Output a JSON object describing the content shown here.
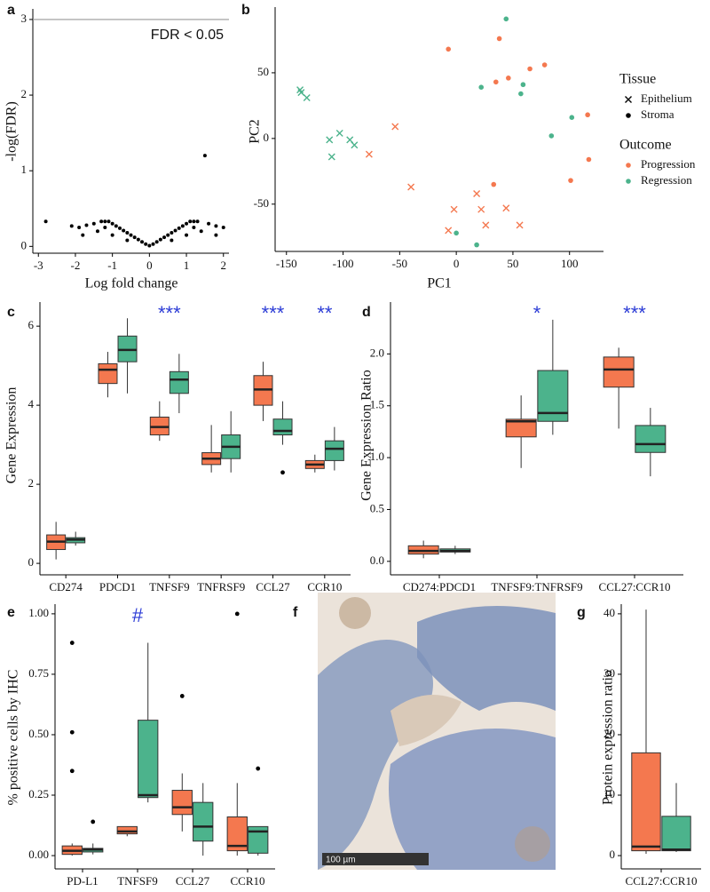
{
  "chart_data": [
    {
      "type": "scatter",
      "panel": "a",
      "x_label": "Log fold change",
      "y_label": "-log(FDR)",
      "color": "#000000",
      "x": [
        -2.8,
        -2.1,
        -1.9,
        -1.7,
        -1.5,
        -1.3,
        -1.2,
        -1.1,
        -1.0,
        -0.9,
        -0.8,
        -0.7,
        -0.6,
        -0.5,
        -0.4,
        -0.3,
        -0.2,
        -0.1,
        0,
        0.1,
        0.2,
        0.3,
        0.4,
        0.5,
        0.6,
        0.7,
        0.8,
        0.9,
        1.0,
        1.1,
        1.2,
        1.3,
        1.5,
        1.6,
        1.8,
        2.0,
        -1.0,
        -0.6,
        0.6,
        1.0,
        -1.4,
        1.4,
        -1.8,
        1.8,
        -1.2,
        1.2
      ],
      "y": [
        0.33,
        0.27,
        0.25,
        0.28,
        0.3,
        0.33,
        0.33,
        0.33,
        0.3,
        0.27,
        0.24,
        0.21,
        0.18,
        0.15,
        0.12,
        0.09,
        0.06,
        0.03,
        0.01,
        0.03,
        0.06,
        0.09,
        0.12,
        0.15,
        0.18,
        0.21,
        0.24,
        0.27,
        0.3,
        0.33,
        0.33,
        0.33,
        1.2,
        0.3,
        0.27,
        0.25,
        0.15,
        0.08,
        0.08,
        0.15,
        0.2,
        0.2,
        0.15,
        0.15,
        0.25,
        0.25
      ],
      "xlim": [
        -3.15,
        2.15
      ],
      "ylim": [
        -0.09,
        3.14
      ],
      "xticks": [
        -3,
        -2,
        -1,
        0,
        1,
        2
      ],
      "yticks": [
        0,
        1,
        2,
        3
      ],
      "threshold": {
        "value": 3,
        "label": "FDR < 0.05"
      }
    },
    {
      "type": "scatter",
      "panel": "b",
      "x_label": "PC1",
      "y_label": "PC2",
      "xlim": [
        -160,
        130
      ],
      "ylim": [
        -86,
        100
      ],
      "xticks": [
        -150,
        -100,
        -50,
        0,
        50,
        100
      ],
      "yticks": [
        -50,
        0,
        50
      ],
      "series": [
        {
          "marker": "x",
          "color": "#4cb38c",
          "x": [
            -138,
            -137,
            -132,
            -112,
            -103,
            -110,
            -94,
            -90
          ],
          "y": [
            37,
            35,
            31,
            -1,
            4,
            -14,
            -1,
            -5
          ]
        },
        {
          "marker": "x",
          "color": "#f4784f",
          "x": [
            -54,
            -77,
            -40,
            18,
            22,
            26,
            44,
            56,
            -7,
            -2
          ],
          "y": [
            9,
            -12,
            -37,
            -42,
            -54,
            -66,
            -53,
            -66,
            -70,
            -54
          ]
        },
        {
          "marker": "dot",
          "color": "#f4784f",
          "x": [
            -7,
            38,
            35,
            46,
            65,
            78,
            116,
            117,
            101,
            33
          ],
          "y": [
            68,
            76,
            43,
            46,
            53,
            56,
            18,
            -16,
            -32,
            -35
          ]
        },
        {
          "marker": "dot",
          "color": "#4cb38c",
          "x": [
            44,
            22,
            59,
            57,
            102,
            84,
            0,
            18
          ],
          "y": [
            91,
            39,
            41,
            34,
            16,
            2,
            -72,
            -81
          ]
        }
      ],
      "legend": [
        {
          "title": "Tissue",
          "entries": [
            {
              "label": "Epithelium",
              "marker": "x"
            },
            {
              "label": "Stroma",
              "marker": "dot"
            }
          ]
        },
        {
          "title": "Outcome",
          "entries": [
            {
              "label": "Progression",
              "color": "#f4784f"
            },
            {
              "label": "Regression",
              "color": "#4cb38c"
            }
          ]
        }
      ]
    },
    {
      "type": "box",
      "panel": "c",
      "y_label": "Gene Expression",
      "categories": [
        "CD274",
        "PDCD1",
        "TNFSF9",
        "TNFRSF9",
        "CCL27",
        "CCR10"
      ],
      "significance": [
        null,
        null,
        "***",
        null,
        "***",
        "**"
      ],
      "ylim": [
        -0.29,
        6.61
      ],
      "yticks": [
        0,
        2,
        4,
        6
      ],
      "series": [
        {
          "color": "#f4784f",
          "boxes": [
            {
              "min": 0.1,
              "q1": 0.35,
              "median": 0.55,
              "q3": 0.72,
              "max": 1.05
            },
            {
              "min": 4.2,
              "q1": 4.55,
              "median": 4.9,
              "q3": 5.05,
              "max": 5.35
            },
            {
              "min": 3.1,
              "q1": 3.25,
              "median": 3.45,
              "q3": 3.7,
              "max": 4.1
            },
            {
              "min": 2.3,
              "q1": 2.5,
              "median": 2.65,
              "q3": 2.8,
              "max": 3.5
            },
            {
              "min": 3.6,
              "q1": 4.0,
              "median": 4.4,
              "q3": 4.75,
              "max": 5.1
            },
            {
              "min": 2.3,
              "q1": 2.4,
              "median": 2.5,
              "q3": 2.6,
              "max": 2.75
            }
          ]
        },
        {
          "color": "#4cb38c",
          "boxes": [
            {
              "min": 0.45,
              "q1": 0.52,
              "median": 0.6,
              "q3": 0.65,
              "max": 0.8
            },
            {
              "min": 4.3,
              "q1": 5.1,
              "median": 5.4,
              "q3": 5.75,
              "max": 6.2
            },
            {
              "min": 3.8,
              "q1": 4.3,
              "median": 4.65,
              "q3": 4.85,
              "max": 5.3
            },
            {
              "min": 2.3,
              "q1": 2.65,
              "median": 2.95,
              "q3": 3.25,
              "max": 3.85
            },
            {
              "min": 3.0,
              "q1": 3.25,
              "median": 3.35,
              "q3": 3.65,
              "max": 4.1,
              "outliers": [
                2.3
              ]
            },
            {
              "min": 2.35,
              "q1": 2.6,
              "median": 2.9,
              "q3": 3.1,
              "max": 3.45
            }
          ]
        }
      ]
    },
    {
      "type": "box",
      "panel": "d",
      "y_label": "Gene Expression Ratio",
      "categories": [
        "CD274:PDCD1",
        "TNFSF9:TNFRSF9",
        "CCL27:CCR10"
      ],
      "significance": [
        null,
        "*",
        "***"
      ],
      "ylim": [
        -0.13,
        2.5
      ],
      "yticks": [
        {
          "value": 0,
          "label": "0.0"
        },
        0.5,
        {
          "value": 1,
          "label": "1.0"
        },
        1.5,
        {
          "value": 2,
          "label": "2.0"
        }
      ],
      "series": [
        {
          "color": "#f4784f",
          "boxes": [
            {
              "min": 0.03,
              "q1": 0.07,
              "median": 0.1,
              "q3": 0.15,
              "max": 0.2
            },
            {
              "min": 0.9,
              "q1": 1.2,
              "median": 1.35,
              "q3": 1.37,
              "max": 1.6
            },
            {
              "min": 1.28,
              "q1": 1.68,
              "median": 1.85,
              "q3": 1.97,
              "max": 2.06
            }
          ]
        },
        {
          "color": "#4cb38c",
          "boxes": [
            {
              "min": 0.07,
              "q1": 0.09,
              "median": 0.1,
              "q3": 0.12,
              "max": 0.15
            },
            {
              "min": 1.22,
              "q1": 1.35,
              "median": 1.43,
              "q3": 1.84,
              "max": 2.33
            },
            {
              "min": 0.82,
              "q1": 1.05,
              "median": 1.13,
              "q3": 1.31,
              "max": 1.48
            }
          ]
        }
      ]
    },
    {
      "type": "box",
      "panel": "e",
      "y_label": "% positive cells by IHC",
      "categories": [
        "PD-L1",
        "TNFSF9",
        "CCL27",
        "CCR10"
      ],
      "significance": [
        null,
        "#",
        null,
        null
      ],
      "ylim": [
        -0.055,
        1.04
      ],
      "yticks": [
        {
          "value": 0,
          "label": "0.00"
        },
        {
          "value": 0.25,
          "label": "0.25"
        },
        {
          "value": 0.5,
          "label": "0.50"
        },
        {
          "value": 0.75,
          "label": "0.75"
        },
        {
          "value": 1,
          "label": "1.00"
        }
      ],
      "series": [
        {
          "color": "#f4784f",
          "boxes": [
            {
              "min": 0,
              "q1": 0.005,
              "median": 0.02,
              "q3": 0.04,
              "max": 0.05,
              "outliers": [
                0.88,
                0.51,
                0.35
              ]
            },
            {
              "min": 0.08,
              "q1": 0.09,
              "median": 0.1,
              "q3": 0.12,
              "max": 0.12
            },
            {
              "min": 0.1,
              "q1": 0.17,
              "median": 0.2,
              "q3": 0.27,
              "max": 0.34,
              "outliers": [
                0.66
              ]
            },
            {
              "min": 0,
              "q1": 0.02,
              "median": 0.04,
              "q3": 0.16,
              "max": 0.3,
              "outliers": [
                1.0
              ]
            }
          ]
        },
        {
          "color": "#4cb38c",
          "boxes": [
            {
              "min": 0.005,
              "q1": 0.015,
              "median": 0.025,
              "q3": 0.03,
              "max": 0.05,
              "outliers": [
                0.14
              ]
            },
            {
              "min": 0.22,
              "q1": 0.24,
              "median": 0.25,
              "q3": 0.56,
              "max": 0.88
            },
            {
              "min": 0,
              "q1": 0.06,
              "median": 0.12,
              "q3": 0.22,
              "max": 0.3
            },
            {
              "min": 0,
              "q1": 0.01,
              "median": 0.1,
              "q3": 0.12,
              "max": 0.12,
              "outliers": [
                0.36
              ]
            }
          ]
        }
      ]
    },
    {
      "type": "image",
      "panel": "f",
      "scale_bar": "100 µm"
    },
    {
      "type": "box",
      "panel": "g",
      "y_label": "Protein expression ratio",
      "categories": [
        "CCL27:CCR10"
      ],
      "ylim": [
        -2.2,
        41.6
      ],
      "yticks": [
        0,
        10,
        20,
        30,
        40
      ],
      "series": [
        {
          "color": "#f4784f",
          "boxes": [
            {
              "min": 0.3,
              "q1": 0.8,
              "median": 1.5,
              "q3": 17,
              "max": 40.7
            }
          ]
        },
        {
          "color": "#4cb38c",
          "boxes": [
            {
              "min": 0.6,
              "q1": 0.8,
              "median": 1,
              "q3": 6.5,
              "max": 12
            }
          ]
        }
      ]
    }
  ]
}
